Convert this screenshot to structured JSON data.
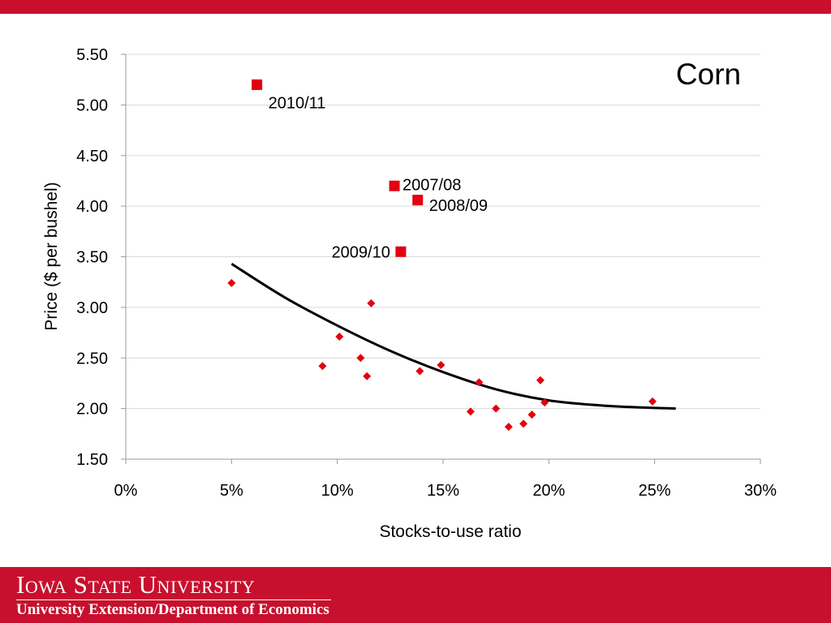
{
  "footer": {
    "university": "Iowa State University",
    "department": "University Extension/Department of Economics"
  },
  "colors": {
    "brand": "#c8102e",
    "points": "#e3000f",
    "trend": "#000000"
  },
  "chart_data": {
    "type": "scatter",
    "title": "Corn",
    "xlabel": "Stocks-to-use ratio",
    "ylabel": "Price ($ per bushel)",
    "xlim": [
      0,
      0.3
    ],
    "ylim": [
      1.5,
      5.5
    ],
    "x_ticks": [
      {
        "value": 0.0,
        "label": "0%"
      },
      {
        "value": 0.05,
        "label": "5%"
      },
      {
        "value": 0.1,
        "label": "10%"
      },
      {
        "value": 0.15,
        "label": "15%"
      },
      {
        "value": 0.2,
        "label": "20%"
      },
      {
        "value": 0.25,
        "label": "25%"
      },
      {
        "value": 0.3,
        "label": "30%"
      }
    ],
    "y_ticks": [
      {
        "value": 1.5,
        "label": "1.50"
      },
      {
        "value": 2.0,
        "label": "2.00"
      },
      {
        "value": 2.5,
        "label": "2.50"
      },
      {
        "value": 3.0,
        "label": "3.00"
      },
      {
        "value": 3.5,
        "label": "3.50"
      },
      {
        "value": 4.0,
        "label": "4.00"
      },
      {
        "value": 4.5,
        "label": "4.50"
      },
      {
        "value": 5.0,
        "label": "5.00"
      },
      {
        "value": 5.5,
        "label": "5.50"
      }
    ],
    "grid": "horizontal",
    "historical": [
      {
        "x": 0.05,
        "y": 3.24
      },
      {
        "x": 0.093,
        "y": 2.42
      },
      {
        "x": 0.101,
        "y": 2.71
      },
      {
        "x": 0.111,
        "y": 2.5
      },
      {
        "x": 0.114,
        "y": 2.32
      },
      {
        "x": 0.116,
        "y": 3.04
      },
      {
        "x": 0.139,
        "y": 2.37
      },
      {
        "x": 0.149,
        "y": 2.43
      },
      {
        "x": 0.163,
        "y": 1.97
      },
      {
        "x": 0.167,
        "y": 2.26
      },
      {
        "x": 0.175,
        "y": 2.0
      },
      {
        "x": 0.181,
        "y": 1.82
      },
      {
        "x": 0.188,
        "y": 1.85
      },
      {
        "x": 0.192,
        "y": 1.94
      },
      {
        "x": 0.196,
        "y": 2.28
      },
      {
        "x": 0.198,
        "y": 2.06
      },
      {
        "x": 0.249,
        "y": 2.07
      }
    ],
    "highlighted": [
      {
        "x": 0.062,
        "y": 5.2,
        "label": "2010/11"
      },
      {
        "x": 0.127,
        "y": 4.2,
        "label": "2007/08"
      },
      {
        "x": 0.138,
        "y": 4.06,
        "label": "2008/09"
      },
      {
        "x": 0.13,
        "y": 3.55,
        "label": "2009/10"
      }
    ],
    "trendline": [
      {
        "x": 0.05,
        "y": 3.43
      },
      {
        "x": 0.075,
        "y": 3.1
      },
      {
        "x": 0.1,
        "y": 2.82
      },
      {
        "x": 0.125,
        "y": 2.57
      },
      {
        "x": 0.15,
        "y": 2.36
      },
      {
        "x": 0.175,
        "y": 2.19
      },
      {
        "x": 0.2,
        "y": 2.08
      },
      {
        "x": 0.225,
        "y": 2.03
      },
      {
        "x": 0.245,
        "y": 2.01
      },
      {
        "x": 0.26,
        "y": 2.0
      }
    ]
  }
}
